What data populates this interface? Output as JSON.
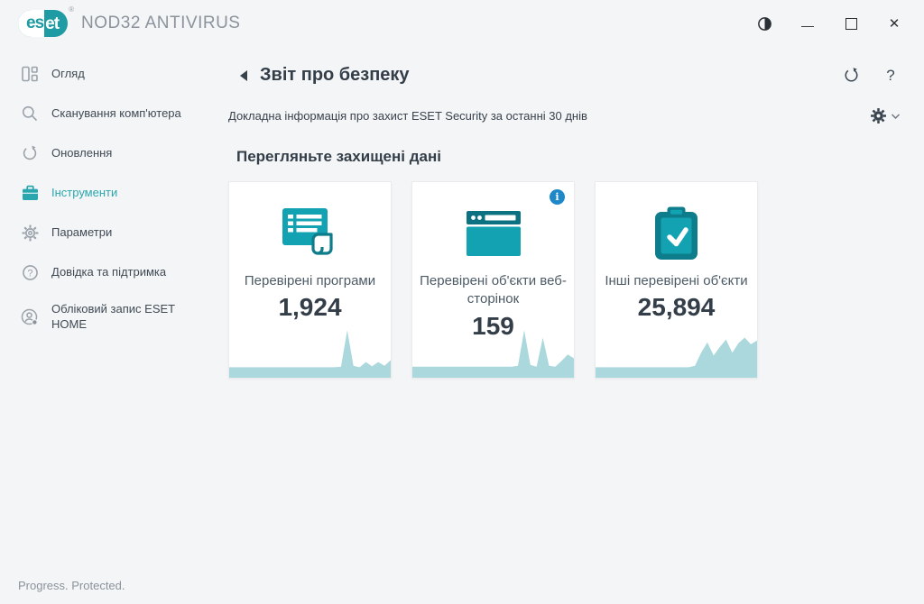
{
  "brand": {
    "logo_left": "es",
    "logo_right": "et",
    "registered_mark": "®",
    "product_name": "NOD32 ANTIVIRUS"
  },
  "window_controls": {
    "minimize_glyph": "—",
    "close_glyph": "✕"
  },
  "sidebar": {
    "items": [
      {
        "label": "Огляд",
        "icon": "overview-icon",
        "active": false
      },
      {
        "label": "Сканування комп'ютера",
        "icon": "computer-scan-icon",
        "active": false
      },
      {
        "label": "Оновлення",
        "icon": "update-icon",
        "active": false
      },
      {
        "label": "Інструменти",
        "icon": "tools-icon",
        "active": true
      },
      {
        "label": "Параметри",
        "icon": "settings-icon",
        "active": false
      },
      {
        "label": "Довідка та підтримка",
        "icon": "help-icon",
        "active": false
      },
      {
        "label": "Обліковий запис ESET HOME",
        "icon": "account-icon",
        "active": false
      }
    ]
  },
  "header": {
    "title": "Звіт про безпеку",
    "help_glyph": "?"
  },
  "subheader": {
    "text": "Докладна інформація про захист ESET Security за останні 30 днів"
  },
  "section": {
    "title": "Перегляньте захищені дані"
  },
  "cards": [
    {
      "label": "Перевірені програми",
      "value": "1,924",
      "icon": "scanned-applications-icon",
      "sparkline": [
        9,
        9,
        9,
        9,
        9,
        9,
        9,
        9,
        9,
        9,
        9,
        9,
        9,
        9,
        9,
        9,
        9,
        9,
        10,
        88,
        12,
        9,
        20,
        11,
        20,
        12,
        24
      ]
    },
    {
      "label": "Перевірені об'єкти веб-сторінок",
      "value": "159",
      "icon": "scanned-web-objects-icon",
      "info_glyph": "i",
      "sparkline": [
        10,
        10,
        10,
        10,
        10,
        10,
        10,
        10,
        10,
        10,
        10,
        10,
        10,
        10,
        10,
        10,
        10,
        12,
        88,
        14,
        10,
        72,
        12,
        10,
        22,
        36,
        28
      ]
    },
    {
      "label": "Інші перевірені об'єкти",
      "value": "25,894",
      "icon": "other-scanned-objects-icon",
      "sparkline": [
        9,
        9,
        9,
        9,
        9,
        9,
        9,
        9,
        9,
        9,
        9,
        9,
        9,
        9,
        9,
        9,
        12,
        40,
        62,
        34,
        52,
        68,
        40,
        60,
        72,
        58,
        66
      ]
    }
  ],
  "footer": {
    "tagline": "Progress. Protected."
  },
  "colors": {
    "accent_teal": "#2aa7ae",
    "logo_teal": "#1f9ba3",
    "icon_teal_bright": "#12a2b2",
    "icon_teal_dark": "#0d7c8b",
    "sparkline_fill": "#abd8dd",
    "info_blue": "#1e88c8",
    "text_dark": "#333e48",
    "text_gray": "#8b939c"
  }
}
